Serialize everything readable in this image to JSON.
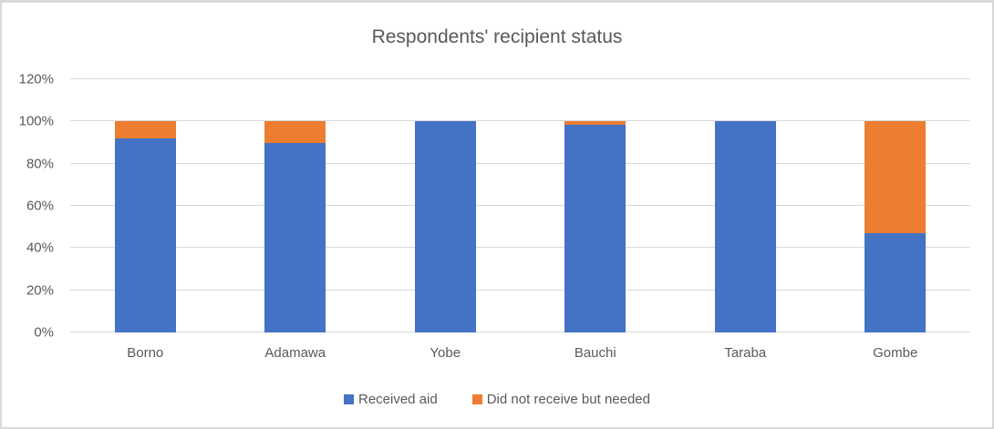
{
  "chart_data": {
    "type": "bar",
    "stacked": true,
    "title": "Respondents' recipient status",
    "xlabel": "",
    "ylabel": "",
    "categories": [
      "Borno",
      "Adamawa",
      "Yobe",
      "Bauchi",
      "Taraba",
      "Gombe"
    ],
    "series": [
      {
        "name": "Received aid",
        "color": "#4472c4",
        "values": [
          92,
          90,
          100,
          98.5,
          100,
          47
        ]
      },
      {
        "name": "Did not receive but needed",
        "color": "#ed7d31",
        "values": [
          8,
          10,
          0,
          1.5,
          0,
          53
        ]
      }
    ],
    "ylim": [
      0,
      120
    ],
    "yticks": [
      0,
      20,
      40,
      60,
      80,
      100,
      120
    ],
    "ytick_labels": [
      "0%",
      "20%",
      "40%",
      "60%",
      "80%",
      "100%",
      "120%"
    ],
    "grid": true,
    "legend_position": "bottom",
    "gridline_color": "#d9d9d9",
    "text_color": "#595959"
  }
}
